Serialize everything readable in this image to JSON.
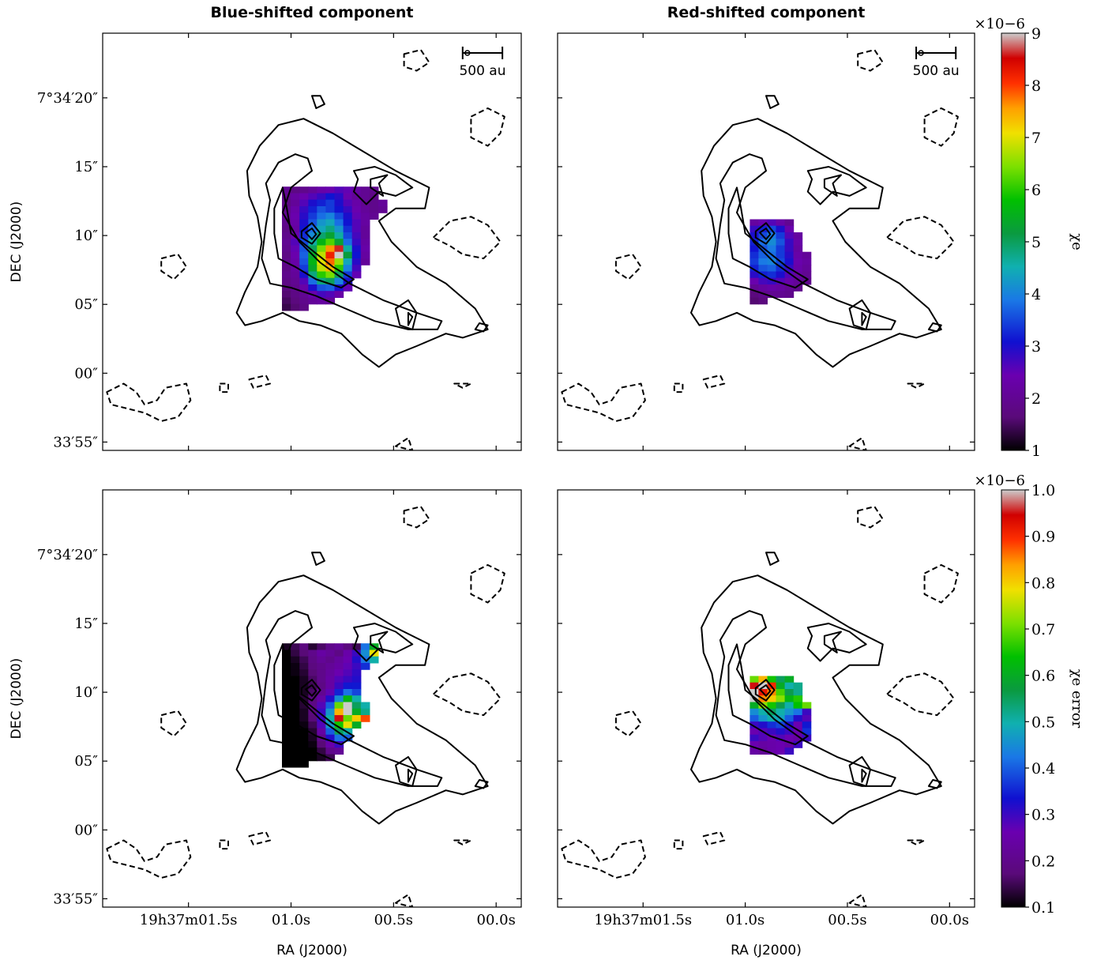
{
  "figure": {
    "col_titles": [
      "Blue-shifted component",
      "Red-shifted component"
    ],
    "ylabel": "DEC (J2000)",
    "xlabel": "RA (J2000)",
    "scalebar_label": "500 au"
  },
  "axes": {
    "y_ticks": [
      {
        "label": "7°34′20″",
        "frac": 0.155
      },
      {
        "label": "15″",
        "frac": 0.32
      },
      {
        "label": "10″",
        "frac": 0.485
      },
      {
        "label": "05″",
        "frac": 0.65
      },
      {
        "label": "00″",
        "frac": 0.815
      },
      {
        "label": "33′55″",
        "frac": 0.98
      }
    ],
    "x_ticks": [
      {
        "label": "19h37m01.5s",
        "frac": 0.205
      },
      {
        "label": "01.0s",
        "frac": 0.45
      },
      {
        "label": "00.5s",
        "frac": 0.695
      },
      {
        "label": "00.0s",
        "frac": 0.94
      }
    ]
  },
  "colorbars": [
    {
      "label": "χe",
      "exponent": "×10−6",
      "min": 1,
      "max": 9,
      "ticks": [
        "1",
        "2",
        "3",
        "4",
        "5",
        "6",
        "7",
        "8",
        "9"
      ]
    },
    {
      "label": "χe error",
      "exponent": "×10−6",
      "min": 0.1,
      "max": 1.0,
      "ticks": [
        "0.1",
        "0.2",
        "0.3",
        "0.4",
        "0.5",
        "0.6",
        "0.7",
        "0.8",
        "0.9",
        "1.0"
      ]
    }
  ],
  "chart_data": [
    {
      "type": "heatmap",
      "panel": "top-left",
      "title": "Blue-shifted component",
      "colorbar": "χe",
      "cell_size_arcsec": 0.5,
      "x_unit": "RA offset (arcsec)",
      "y_unit": "DEC (arcsec)",
      "x_range": [
        -9,
        9
      ],
      "y_range": [
        -0.5,
        23.5
      ],
      "cells_note": "rows: y, values left→right starting at x_start",
      "rows": [
        {
          "y": 13.5,
          "x_start": -2.5,
          "values": [
            2.0,
            1.8,
            1.9,
            2.1,
            2.3,
            2.4,
            2.6,
            2.5,
            2.2,
            2.0,
            1.9
          ]
        },
        {
          "y": 13.0,
          "x_start": -2.5,
          "values": [
            1.9,
            2.2,
            2.4,
            2.6,
            2.8,
            3.1,
            2.9,
            2.4,
            2.1,
            2.0,
            1.8
          ]
        },
        {
          "y": 12.5,
          "x_start": -2.5,
          "values": [
            1.8,
            2.1,
            2.6,
            3.0,
            3.2,
            3.4,
            3.0,
            2.6,
            2.3,
            2.0,
            1.9,
            2.1
          ]
        },
        {
          "y": 12.0,
          "x_start": -2.5,
          "values": [
            1.9,
            2.3,
            2.8,
            3.2,
            3.6,
            3.4,
            3.1,
            2.8,
            2.4,
            2.1,
            1.9,
            2.0
          ]
        },
        {
          "y": 11.5,
          "x_start": -2.5,
          "values": [
            2.0,
            2.4,
            2.9,
            3.4,
            3.8,
            4.0,
            3.5,
            3.0,
            2.5,
            2.2,
            2.0
          ]
        },
        {
          "y": 11.0,
          "x_start": -2.5,
          "values": [
            1.9,
            2.3,
            3.0,
            3.6,
            4.2,
            4.4,
            3.8,
            3.1,
            2.6,
            2.2
          ]
        },
        {
          "y": 10.5,
          "x_start": -2.5,
          "values": [
            1.8,
            2.2,
            3.1,
            3.8,
            4.4,
            4.8,
            4.2,
            3.3,
            2.6,
            2.1
          ]
        },
        {
          "y": 10.0,
          "x_start": -2.5,
          "values": [
            1.9,
            2.4,
            3.3,
            4.1,
            4.9,
            5.3,
            4.6,
            3.5,
            2.7,
            2.1
          ]
        },
        {
          "y": 9.5,
          "x_start": -2.5,
          "values": [
            2.0,
            2.6,
            3.5,
            4.6,
            5.6,
            6.2,
            5.3,
            3.8,
            2.8,
            2.2
          ]
        },
        {
          "y": 9.0,
          "x_start": -2.5,
          "values": [
            1.9,
            2.5,
            3.6,
            5.0,
            6.4,
            7.6,
            8.6,
            4.6,
            3.0,
            2.3
          ]
        },
        {
          "y": 8.5,
          "x_start": -2.5,
          "values": [
            1.8,
            2.4,
            3.7,
            5.4,
            6.8,
            8.2,
            9.0,
            5.2,
            3.1,
            2.2
          ]
        },
        {
          "y": 8.0,
          "x_start": -2.5,
          "values": [
            1.9,
            2.3,
            3.6,
            5.6,
            7.0,
            7.8,
            6.6,
            4.4,
            2.9,
            2.1
          ]
        },
        {
          "y": 7.5,
          "x_start": -2.5,
          "values": [
            1.8,
            2.2,
            3.4,
            5.4,
            6.8,
            7.4,
            6.0,
            4.0,
            2.7
          ]
        },
        {
          "y": 7.0,
          "x_start": -2.5,
          "values": [
            1.9,
            2.1,
            3.0,
            4.8,
            6.0,
            6.4,
            5.0,
            3.4,
            2.5
          ]
        },
        {
          "y": 6.5,
          "x_start": -2.5,
          "values": [
            1.8,
            2.0,
            2.6,
            3.8,
            4.8,
            5.0,
            4.0,
            3.0
          ]
        },
        {
          "y": 6.0,
          "x_start": -2.5,
          "values": [
            1.7,
            1.9,
            2.3,
            3.0,
            3.6,
            3.7,
            3.0,
            2.5
          ]
        },
        {
          "y": 5.5,
          "x_start": -2.5,
          "values": [
            1.6,
            1.8,
            2.0,
            2.4,
            2.7,
            2.6,
            2.3
          ]
        },
        {
          "y": 5.0,
          "x_start": -2.5,
          "values": [
            1.5,
            1.7,
            1.9,
            2.1,
            2.2,
            2.1
          ]
        },
        {
          "y": 4.5,
          "x_start": -2.5,
          "values": [
            1.4,
            1.6,
            1.8
          ]
        }
      ]
    },
    {
      "type": "heatmap",
      "panel": "top-right",
      "title": "Red-shifted component",
      "colorbar": "χe",
      "rows": [
        {
          "y": 11.0,
          "x_start": -1.5,
          "values": [
            2.2,
            2.4,
            2.6,
            2.3,
            2.0
          ]
        },
        {
          "y": 10.5,
          "x_start": -1.5,
          "values": [
            2.8,
            3.2,
            3.5,
            3.0,
            2.4
          ]
        },
        {
          "y": 10.0,
          "x_start": -1.5,
          "values": [
            3.0,
            3.5,
            3.9,
            3.4,
            2.6,
            2.2
          ]
        },
        {
          "y": 9.5,
          "x_start": -1.5,
          "values": [
            3.2,
            3.8,
            4.1,
            3.6,
            2.8,
            2.3
          ]
        },
        {
          "y": 9.0,
          "x_start": -1.5,
          "values": [
            3.1,
            3.6,
            3.9,
            3.4,
            2.8,
            2.2
          ]
        },
        {
          "y": 8.5,
          "x_start": -1.5,
          "values": [
            3.3,
            3.7,
            3.8,
            3.4,
            2.9,
            2.3,
            2.1
          ]
        },
        {
          "y": 8.0,
          "x_start": -1.5,
          "values": [
            3.4,
            3.9,
            4.0,
            3.5,
            3.0,
            2.4,
            2.2
          ]
        },
        {
          "y": 7.5,
          "x_start": -1.5,
          "values": [
            3.2,
            3.6,
            3.7,
            3.3,
            2.8,
            2.3,
            2.1
          ]
        },
        {
          "y": 7.0,
          "x_start": -1.5,
          "values": [
            2.9,
            3.2,
            3.3,
            3.0,
            2.6,
            2.2,
            2.0
          ]
        },
        {
          "y": 6.5,
          "x_start": -1.5,
          "values": [
            2.4,
            2.7,
            2.8,
            2.6,
            2.3,
            2.1,
            1.9
          ]
        },
        {
          "y": 6.0,
          "x_start": -1.5,
          "values": [
            2.0,
            2.2,
            2.3,
            2.2,
            2.0,
            1.9
          ]
        },
        {
          "y": 5.5,
          "x_start": -1.5,
          "values": [
            1.7,
            1.9,
            2.0,
            2.0,
            1.9
          ]
        },
        {
          "y": 5.0,
          "x_start": -1.5,
          "values": [
            1.6,
            1.7
          ]
        }
      ]
    },
    {
      "type": "heatmap",
      "panel": "bottom-left",
      "title": "Blue-shifted component",
      "colorbar": "χe error",
      "rows": [
        {
          "y": 13.5,
          "x_start": -2.5,
          "values": [
            0.12,
            0.15,
            0.18,
            0.13,
            0.16,
            0.2,
            0.22,
            0.18,
            0.15,
            0.42,
            0.6
          ]
        },
        {
          "y": 13.0,
          "x_start": -2.5,
          "values": [
            0.1,
            0.14,
            0.17,
            0.2,
            0.24,
            0.22,
            0.19,
            0.25,
            0.3,
            0.45,
            0.78
          ]
        },
        {
          "y": 12.5,
          "x_start": -2.5,
          "values": [
            0.1,
            0.12,
            0.15,
            0.19,
            0.22,
            0.2,
            0.23,
            0.26,
            0.32,
            0.42,
            0.5
          ]
        },
        {
          "y": 12.0,
          "x_start": -2.5,
          "values": [
            0.1,
            0.11,
            0.14,
            0.18,
            0.2,
            0.22,
            0.24,
            0.27,
            0.3,
            0.36
          ]
        },
        {
          "y": 11.5,
          "x_start": -2.5,
          "values": [
            0.1,
            0.11,
            0.13,
            0.17,
            0.2,
            0.23,
            0.26,
            0.28,
            0.31
          ]
        },
        {
          "y": 11.0,
          "x_start": -2.5,
          "values": [
            0.1,
            0.1,
            0.12,
            0.16,
            0.2,
            0.24,
            0.28,
            0.3,
            0.32
          ]
        },
        {
          "y": 10.5,
          "x_start": -2.5,
          "values": [
            0.1,
            0.1,
            0.12,
            0.15,
            0.19,
            0.24,
            0.3,
            0.34,
            0.34
          ]
        },
        {
          "y": 10.0,
          "x_start": -2.5,
          "values": [
            0.1,
            0.1,
            0.12,
            0.16,
            0.21,
            0.27,
            0.35,
            0.42,
            0.38
          ]
        },
        {
          "y": 9.5,
          "x_start": -2.5,
          "values": [
            0.1,
            0.1,
            0.13,
            0.18,
            0.24,
            0.32,
            0.45,
            0.62,
            0.5
          ]
        },
        {
          "y": 9.0,
          "x_start": -2.5,
          "values": [
            0.1,
            0.1,
            0.13,
            0.19,
            0.28,
            0.4,
            0.7,
            1.0,
            0.55,
            0.5
          ]
        },
        {
          "y": 8.5,
          "x_start": -2.5,
          "values": [
            0.1,
            0.1,
            0.12,
            0.18,
            0.3,
            0.46,
            0.82,
            1.0,
            0.6,
            0.52
          ]
        },
        {
          "y": 8.0,
          "x_start": -2.5,
          "values": [
            0.1,
            0.1,
            0.12,
            0.17,
            0.3,
            0.5,
            0.95,
            0.7,
            0.8,
            0.88
          ]
        },
        {
          "y": 7.5,
          "x_start": -2.5,
          "values": [
            0.1,
            0.1,
            0.11,
            0.15,
            0.28,
            0.46,
            0.65,
            0.78,
            0.6
          ]
        },
        {
          "y": 7.0,
          "x_start": -2.5,
          "values": [
            0.1,
            0.1,
            0.1,
            0.13,
            0.24,
            0.4,
            0.55,
            0.5
          ]
        },
        {
          "y": 6.5,
          "x_start": -2.5,
          "values": [
            0.1,
            0.1,
            0.1,
            0.12,
            0.2,
            0.32,
            0.42,
            0.4
          ]
        },
        {
          "y": 6.0,
          "x_start": -2.5,
          "values": [
            0.1,
            0.1,
            0.1,
            0.11,
            0.17,
            0.25,
            0.3
          ]
        },
        {
          "y": 5.5,
          "x_start": -2.5,
          "values": [
            0.1,
            0.1,
            0.1,
            0.1,
            0.14,
            0.2,
            0.22
          ]
        },
        {
          "y": 5.0,
          "x_start": -2.5,
          "values": [
            0.1,
            0.1,
            0.1,
            0.1,
            0.12,
            0.15
          ]
        },
        {
          "y": 4.5,
          "x_start": -2.5,
          "values": [
            0.1,
            0.1,
            0.1
          ]
        }
      ]
    },
    {
      "type": "heatmap",
      "panel": "bottom-right",
      "title": "Red-shifted component",
      "colorbar": "χe error",
      "rows": [
        {
          "y": 11.0,
          "x_start": -1.5,
          "values": [
            0.7,
            0.82,
            0.65,
            0.55,
            0.6
          ]
        },
        {
          "y": 10.5,
          "x_start": -1.5,
          "values": [
            0.95,
            1.0,
            0.9,
            0.6,
            0.5,
            0.52
          ]
        },
        {
          "y": 10.0,
          "x_start": -1.5,
          "values": [
            1.0,
            0.92,
            0.85,
            0.68,
            0.56,
            0.52
          ]
        },
        {
          "y": 9.5,
          "x_start": -1.5,
          "values": [
            1.0,
            0.85,
            0.8,
            0.72,
            0.62,
            0.66
          ]
        },
        {
          "y": 9.0,
          "x_start": -1.5,
          "values": [
            0.6,
            0.72,
            0.65,
            0.56,
            0.5,
            0.64,
            0.7
          ]
        },
        {
          "y": 8.5,
          "x_start": -1.5,
          "values": [
            0.45,
            0.5,
            0.55,
            0.5,
            0.46,
            0.42,
            0.3
          ]
        },
        {
          "y": 8.0,
          "x_start": -1.5,
          "values": [
            0.4,
            0.46,
            0.5,
            0.48,
            0.4,
            0.32,
            0.28
          ]
        },
        {
          "y": 7.5,
          "x_start": -1.5,
          "values": [
            0.3,
            0.32,
            0.36,
            0.38,
            0.32,
            0.26,
            0.34
          ]
        },
        {
          "y": 7.0,
          "x_start": -1.5,
          "values": [
            0.26,
            0.28,
            0.3,
            0.32,
            0.3,
            0.25,
            0.36
          ]
        },
        {
          "y": 6.5,
          "x_start": -1.5,
          "values": [
            0.3,
            0.28,
            0.26,
            0.28,
            0.26,
            0.24,
            0.3
          ]
        },
        {
          "y": 6.0,
          "x_start": -1.5,
          "values": [
            0.26,
            0.24,
            0.25,
            0.26,
            0.24,
            0.3
          ]
        },
        {
          "y": 5.5,
          "x_start": -1.5,
          "values": [
            0.24,
            0.22,
            0.25,
            0.26,
            0.3
          ]
        }
      ]
    }
  ]
}
